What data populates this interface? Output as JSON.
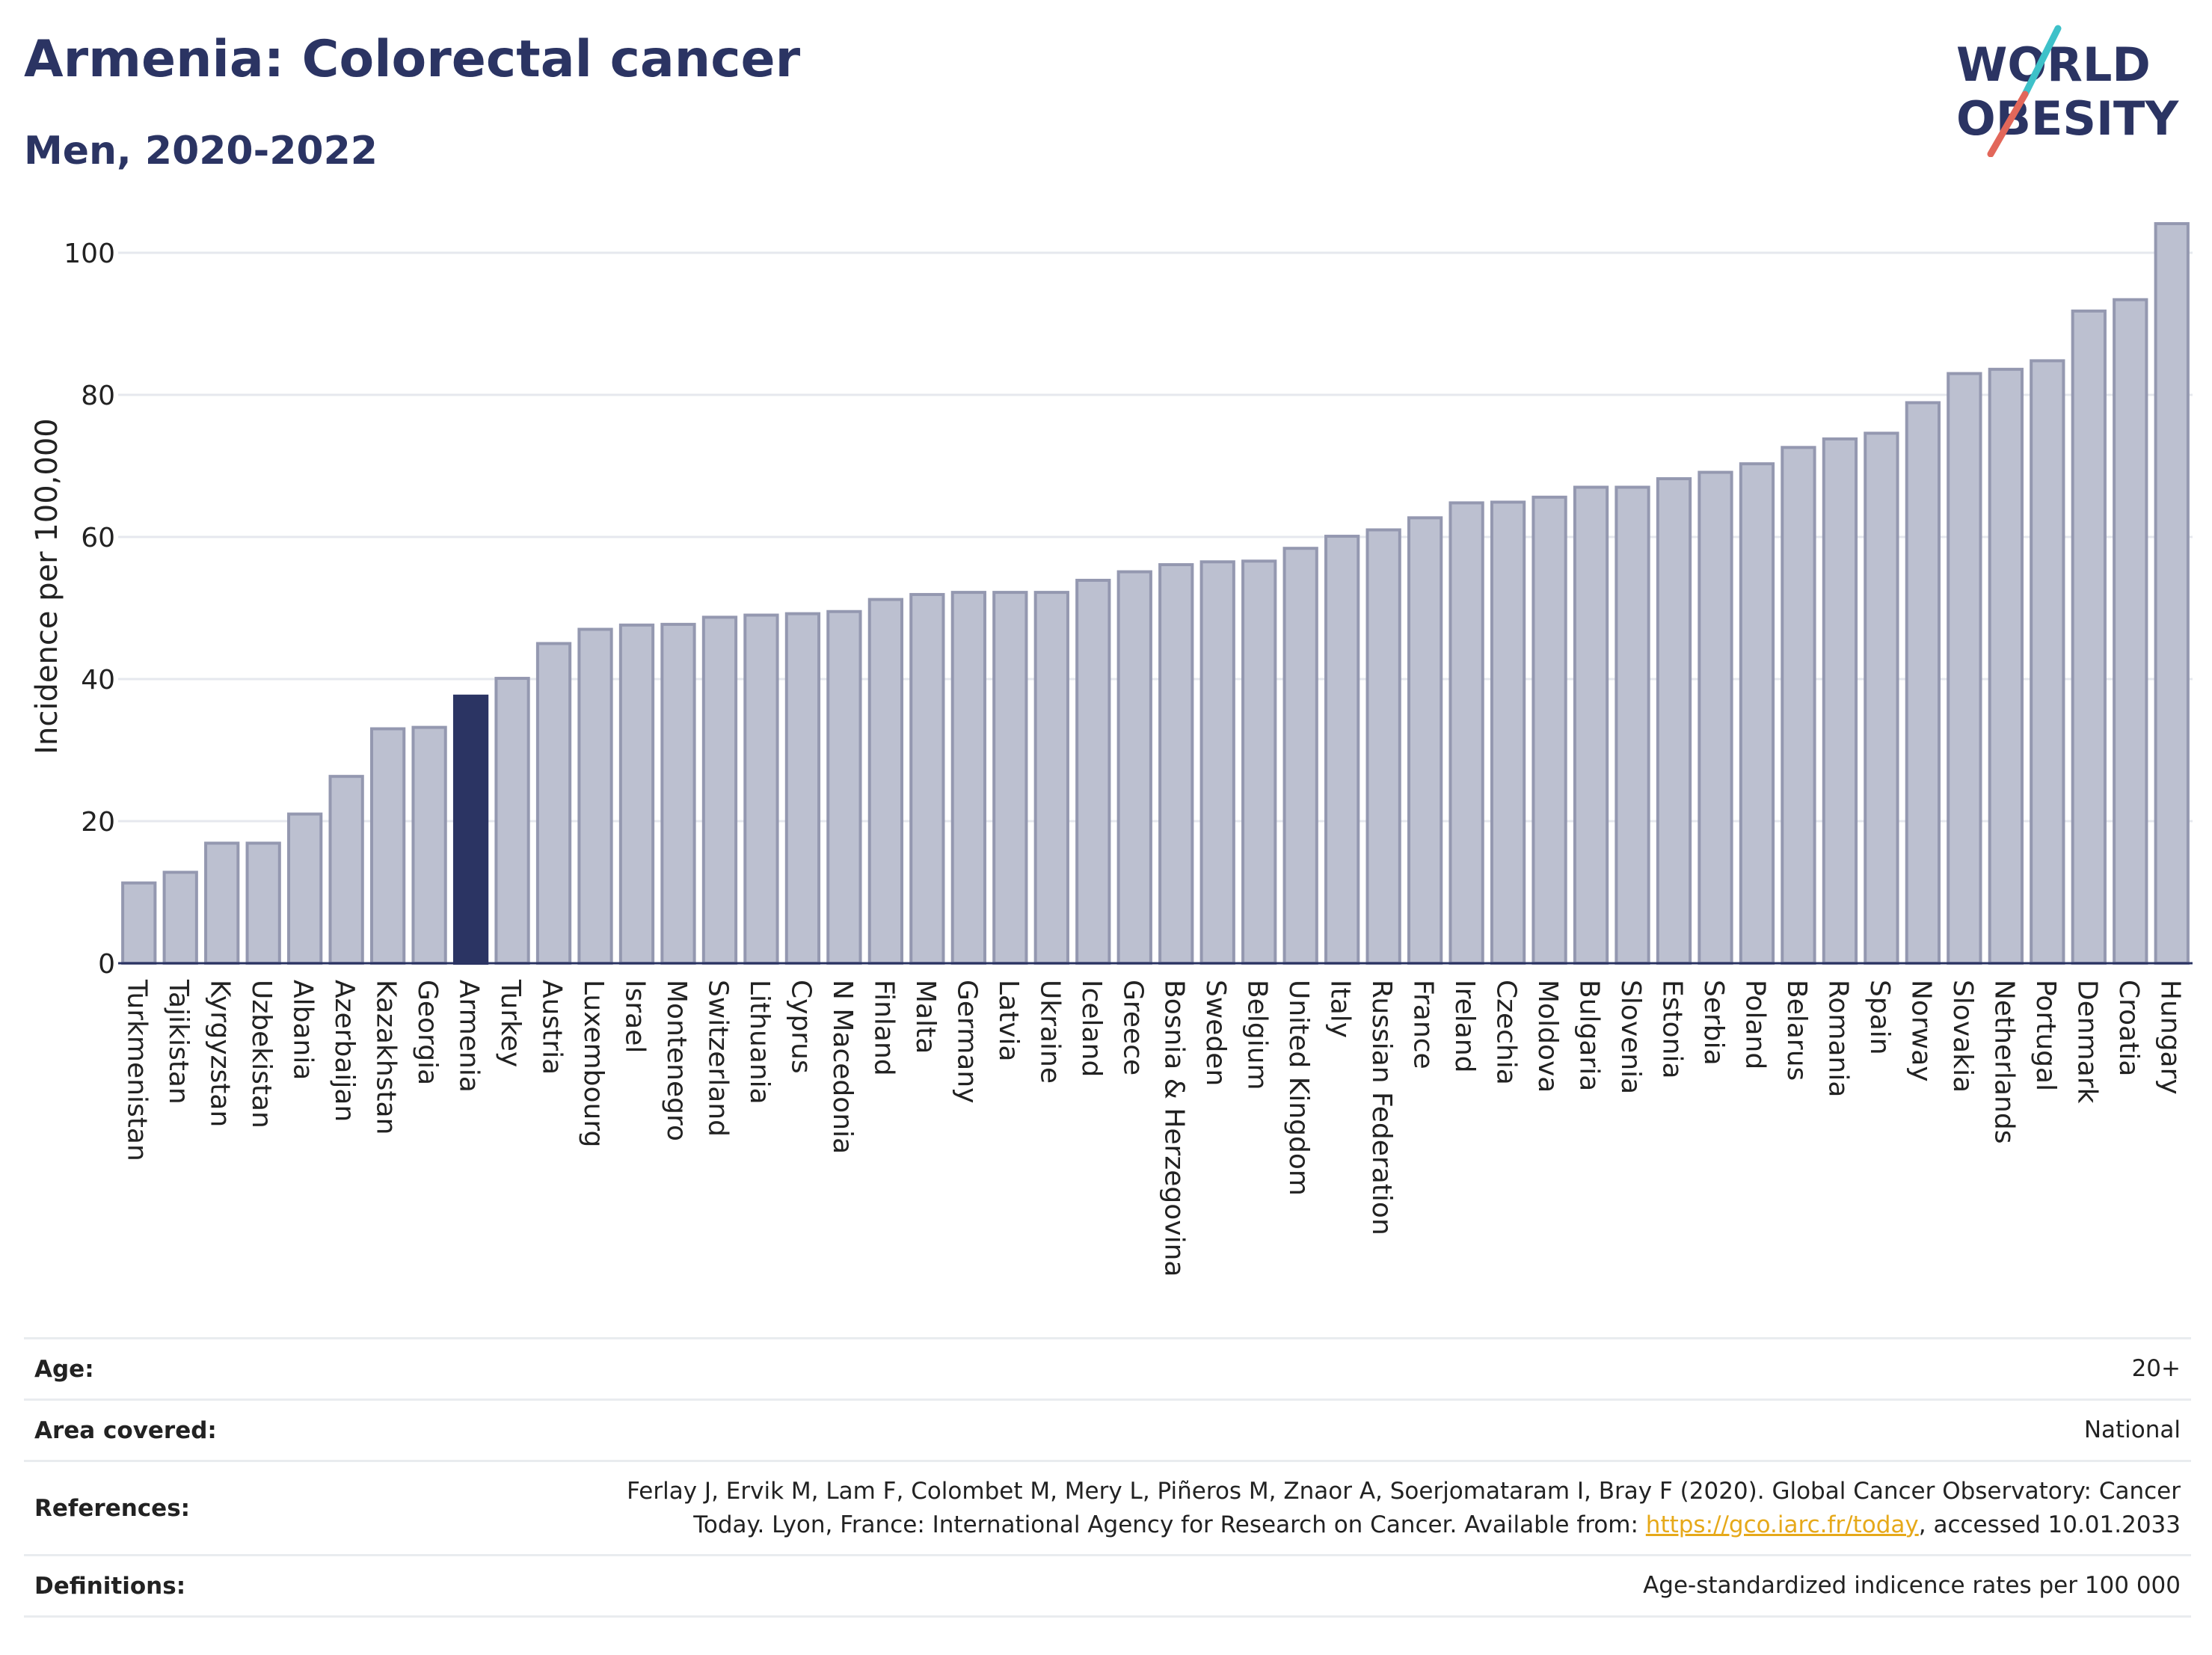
{
  "header": {
    "title": "Armenia: Colorectal cancer",
    "subtitle": "Men, 2020-2022"
  },
  "logo": {
    "line1": "WORLD",
    "line2": "OBESITY",
    "colors": {
      "text": "#2b3463",
      "slash_teal": "#3ec1c9",
      "slash_coral": "#e2675a"
    }
  },
  "colors": {
    "bar_default": "#bcc0d0",
    "bar_default_stroke": "#9498b0",
    "bar_highlight": "#2b3463",
    "gridline": "#e6e8ee",
    "axis": "#2b3463"
  },
  "chart_data": {
    "type": "bar",
    "title": "Armenia: Colorectal cancer",
    "subtitle": "Men, 2020-2022",
    "xlabel": "",
    "ylabel": "Incidence per 100,000",
    "ylim": [
      0,
      104
    ],
    "yticks": [
      0,
      20,
      40,
      60,
      80,
      100
    ],
    "grid": true,
    "highlight": "Armenia",
    "categories": [
      "Turkmenistan",
      "Tajikistan",
      "Kyrgyzstan",
      "Uzbekistan",
      "Albania",
      "Azerbaijan",
      "Kazakhstan",
      "Georgia",
      "Armenia",
      "Turkey",
      "Austria",
      "Luxembourg",
      "Israel",
      "Montenegro",
      "Switzerland",
      "Lithuania",
      "Cyprus",
      "N Macedonia",
      "Finland",
      "Malta",
      "Germany",
      "Latvia",
      "Ukraine",
      "Iceland",
      "Greece",
      "Bosnia & Herzegovina",
      "Sweden",
      "Belgium",
      "United Kingdom",
      "Italy",
      "Russian Federation",
      "France",
      "Ireland",
      "Czechia",
      "Moldova",
      "Bulgaria",
      "Slovenia",
      "Estonia",
      "Serbia",
      "Poland",
      "Belarus",
      "Romania",
      "Spain",
      "Norway",
      "Slovakia",
      "Netherlands",
      "Portugal",
      "Denmark",
      "Croatia",
      "Hungary"
    ],
    "values": [
      11.3,
      12.8,
      16.9,
      16.9,
      21.0,
      26.3,
      33.0,
      33.2,
      37.6,
      40.1,
      45.0,
      47.0,
      47.6,
      47.7,
      48.7,
      49.0,
      49.2,
      49.5,
      51.2,
      51.9,
      52.2,
      52.2,
      52.2,
      53.9,
      55.1,
      56.1,
      56.5,
      56.6,
      58.4,
      60.1,
      61.0,
      62.7,
      64.8,
      64.9,
      65.6,
      67.0,
      67.0,
      68.2,
      69.1,
      70.3,
      72.6,
      73.8,
      74.6,
      78.9,
      83.0,
      83.6,
      84.8,
      91.8,
      93.4,
      104.1
    ]
  },
  "info": {
    "age_label": "Age:",
    "age_value": "20+",
    "area_label": "Area covered:",
    "area_value": "National",
    "references_label": "References:",
    "references_line1": "Ferlay J, Ervik M, Lam F, Colombet M, Mery L, Piñeros M, Znaor A, Soerjomataram I, Bray F (2020). Global Cancer Observatory: Cancer",
    "references_line2_prefix": "Today. Lyon, France: International Agency for Research on Cancer. Available from: ",
    "references_link": "https://gco.iarc.fr/today",
    "references_line2_suffix": ", accessed 10.01.2033",
    "definitions_label": "Definitions:",
    "definitions_value": "Age-standardized indicence rates per 100 000"
  }
}
